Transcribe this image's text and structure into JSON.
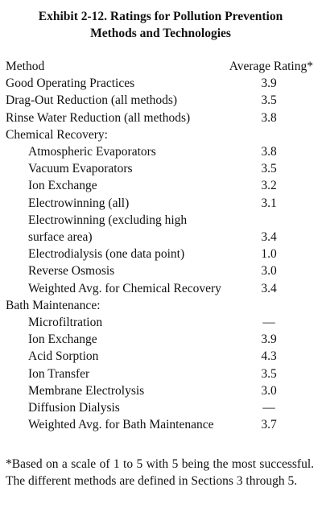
{
  "title": "Exhibit 2-12. Ratings for Pollution Prevention Methods and Technologies",
  "table": {
    "header": [
      "Method",
      "Average Rating*"
    ],
    "rows": [
      {
        "method": "Good Operating Practices",
        "rating": "3.9"
      },
      {
        "method": "Drag-Out Reduction (all methods)",
        "rating": "3.5"
      },
      {
        "method": "Rinse Water Reduction (all methods)",
        "rating": "3.8"
      },
      {
        "method": "Chemical Recovery:",
        "items": [
          {
            "method": "Atmospheric Evaporators",
            "rating": "3.8"
          },
          {
            "method": "Vacuum Evaporators",
            "rating": "3.5"
          },
          {
            "method": "Ion Exchange",
            "rating": "3.2"
          },
          {
            "method": "Electrowinning (all)",
            "rating": "3.1"
          },
          {
            "method": "Electrowinning (excluding high surface area)",
            "rating": "3.4"
          },
          {
            "method": "Electrodialysis (one data point)",
            "rating": "1.0"
          },
          {
            "method": "Reverse Osmosis",
            "rating": "3.0"
          },
          {
            "method": "Weighted Avg. for Chemical Recovery",
            "rating": "3.4"
          }
        ]
      },
      {
        "method": "Bath Maintenance:",
        "items": [
          {
            "method": "Microfiltration",
            "rating": "—"
          },
          {
            "method": "Ion Exchange",
            "rating": "3.9"
          },
          {
            "method": "Acid Sorption",
            "rating": "4.3"
          },
          {
            "method": "Ion Transfer",
            "rating": "3.5"
          },
          {
            "method": "Membrane Electrolysis",
            "rating": "3.0"
          },
          {
            "method": "Diffusion Dialysis",
            "rating": "—"
          },
          {
            "method": "Weighted Avg. for Bath Maintenance",
            "rating": "3.7"
          }
        ]
      }
    ]
  },
  "footnote": "*Based on a scale of 1 to 5 with 5 being the most successful. The different methods are defined in Sections 3 through 5."
}
